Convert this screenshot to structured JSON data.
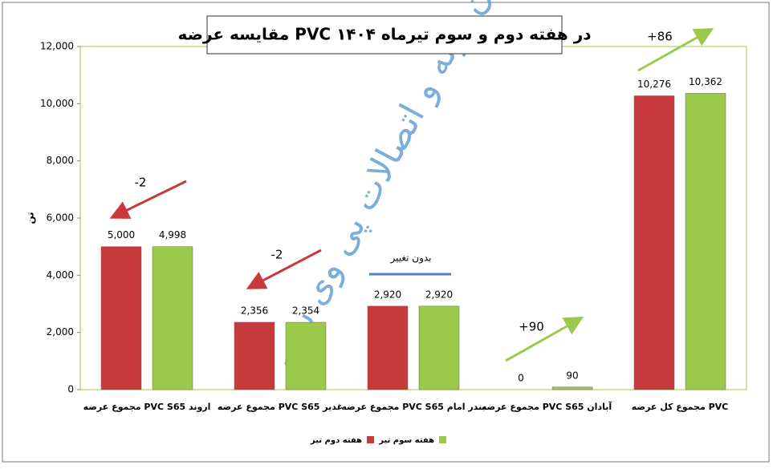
{
  "chart_data": {
    "type": "bar",
    "title": "مقایسه عرضه PVC در هفته دوم و سوم تیرماه ۱۴۰۴",
    "y_label": "تن",
    "watermark": "انجمن لوله و اتصالات پی وی سی",
    "categories": [
      "مجموع عرضه PVC S65 اروند",
      "مجموع عرضه PVC S65 غدیر",
      "مجموع عرضه PVC S65 بندر امام",
      "مجموع عرضه PVC S65 آبادان",
      "مجموع کل عرضه PVC"
    ],
    "series": [
      {
        "name": "هفته دوم تیر",
        "color": "#c8393b",
        "values": [
          5000,
          2356,
          2920,
          0,
          10276
        ],
        "value_labels": [
          "5,000",
          "2,356",
          "2,920",
          "0",
          "10,276"
        ]
      },
      {
        "name": "هفته سوم تیر",
        "color": "#9bc94a",
        "values": [
          4998,
          2354,
          2920,
          90,
          10362
        ],
        "value_labels": [
          "4,998",
          "2,354",
          "2,920",
          "90",
          "10,362"
        ]
      }
    ],
    "annotations": [
      "-2",
      "-2",
      "بدون تغییر",
      "+90",
      "+86"
    ],
    "ylim": [
      0,
      12000
    ],
    "yticks": [
      0,
      {
        "value": 2000,
        "label": "2,000"
      },
      {
        "value": 4000,
        "label": "4,000"
      },
      {
        "value": 6000,
        "label": "6,000"
      },
      {
        "value": 8000,
        "label": "8,000"
      },
      {
        "value": 10000,
        "label": "10,000"
      },
      {
        "value": 12000,
        "label": "12,000"
      }
    ],
    "grid": false
  }
}
